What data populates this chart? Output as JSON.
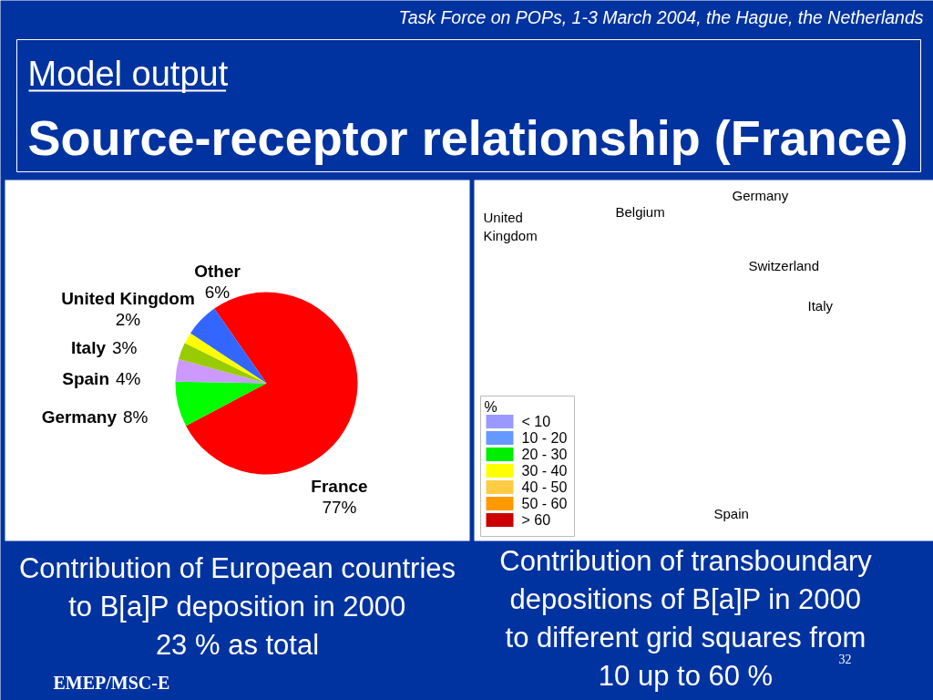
{
  "chart_data": [
    {
      "type": "pie",
      "title": "Source-receptor relationship (France)",
      "subtitle": "Model output",
      "categories": [
        "France",
        "Germany",
        "Spain",
        "Italy",
        "United Kingdom",
        "Other"
      ],
      "values": [
        77,
        8,
        4,
        3,
        2,
        6
      ],
      "colors": [
        "#ff0000",
        "#00ff00",
        "#cc99ff",
        "#99cc00",
        "#ffff00",
        "#3366ff"
      ],
      "value_labels": [
        "77%",
        "8%",
        "4%",
        "3%",
        "2%",
        "6%"
      ],
      "annotations": [
        "Task Force on POPs, 1-3 March 2004, the Hague, the Netherlands",
        "Contribution of European countries\nto B[a]P deposition in 2000\n23 % as total",
        "EMEP/MSC-E"
      ]
    },
    {
      "type": "other",
      "legend_title": "%",
      "categories": [
        "< 10",
        "10 - 20",
        "20 - 30",
        "30 - 40",
        "40 - 50",
        "50 - 60",
        "> 60"
      ],
      "colors": [
        "#9999ff",
        "#6699ff",
        "#00ee00",
        "#ffff00",
        "#ffcc44",
        "#ff9900",
        "#cc0000"
      ],
      "annotations": [
        "United\nKingdom",
        "Belgium",
        "Germany",
        "Switzerland",
        "Italy",
        "Spain",
        "Contribution of transboundary\ndepositions of B[a]P in 2000\nto different grid squares from\n10 up to 60 %",
        "32"
      ]
    }
  ]
}
